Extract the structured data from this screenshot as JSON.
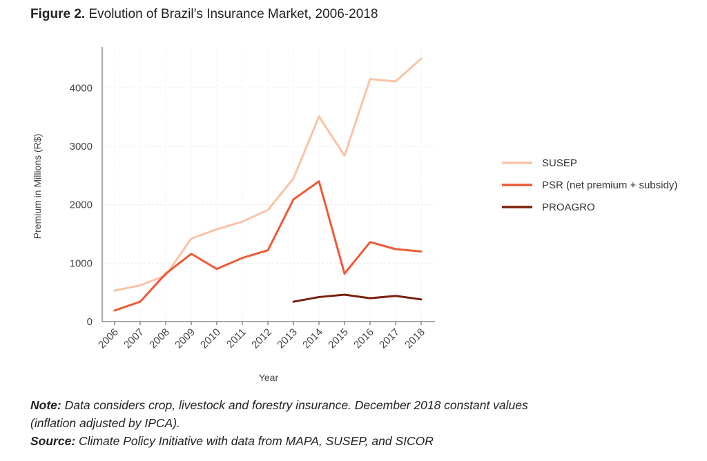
{
  "figure": {
    "label": "Figure 2.",
    "title": "Evolution of Brazil’s Insurance Market, 2006-2018"
  },
  "note": {
    "label": "Note:",
    "text": "Data considers crop, livestock and forestry insurance. December 2018 constant values",
    "text2": "(inflation adjusted by IPCA)."
  },
  "source": {
    "label": "Source:",
    "text": "Climate Policy Initiative with data from MAPA, SUSEP, and SICOR"
  },
  "chart_data": {
    "type": "line",
    "title": "Evolution of Brazil’s Insurance Market, 2006-2018",
    "xlabel": "Year",
    "ylabel": "Premium in Millions (R$)",
    "x": [
      "2006",
      "2007",
      "2008",
      "2009",
      "2010",
      "2011",
      "2012",
      "2013",
      "2014",
      "2015",
      "2016",
      "2017",
      "2018"
    ],
    "ylim": [
      0,
      4700
    ],
    "yticks": [
      0,
      1000,
      2000,
      3000,
      4000
    ],
    "grid": true,
    "legend_position": "right",
    "series": [
      {
        "name": "SUSEP",
        "color": "#f9c3a6",
        "values": [
          530,
          620,
          790,
          1420,
          1580,
          1710,
          1910,
          2450,
          3510,
          2840,
          4150,
          4110,
          4500
        ]
      },
      {
        "name": "PSR (net premium + subsidy)",
        "color": "#ee5a36",
        "values": [
          190,
          340,
          820,
          1160,
          900,
          1090,
          1220,
          2090,
          2400,
          820,
          1360,
          1240,
          1200
        ]
      },
      {
        "name": "PROAGRO",
        "color": "#7a1f0c",
        "values": [
          null,
          null,
          null,
          null,
          null,
          null,
          null,
          340,
          420,
          460,
          400,
          440,
          380
        ]
      }
    ]
  }
}
